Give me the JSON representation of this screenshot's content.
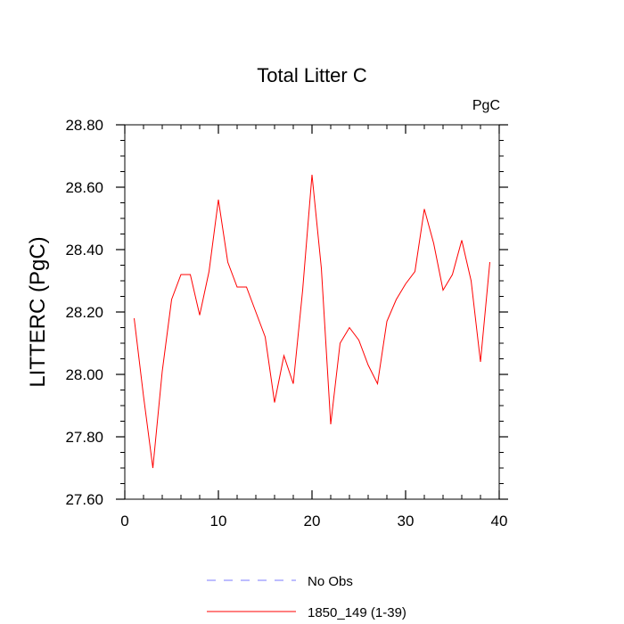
{
  "chart_data": {
    "type": "line",
    "title": "Total Litter C",
    "units_label": "PgC",
    "xlabel": "",
    "ylabel": "LITTERC  (PgC)",
    "xlim": [
      0,
      40
    ],
    "ylim": [
      27.6,
      28.8
    ],
    "x_ticks": [
      0,
      10,
      20,
      30,
      40
    ],
    "x_tick_labels": [
      "0",
      "10",
      "20",
      "30",
      "40"
    ],
    "y_ticks": [
      27.6,
      27.8,
      28.0,
      28.2,
      28.4,
      28.6,
      28.8
    ],
    "y_tick_labels": [
      "27.60",
      "27.80",
      "28.00",
      "28.20",
      "28.40",
      "28.60",
      "28.80"
    ],
    "grid": false,
    "legend_position": "bottom",
    "series": [
      {
        "name": "No Obs",
        "color": "#7b7bff",
        "dashed": true,
        "x": [],
        "y": []
      },
      {
        "name": "1850_149 (1-39)",
        "color": "#ff0000",
        "dashed": false,
        "x": [
          1,
          2,
          3,
          4,
          5,
          6,
          7,
          8,
          9,
          10,
          11,
          12,
          13,
          14,
          15,
          16,
          17,
          18,
          19,
          20,
          21,
          22,
          23,
          24,
          25,
          26,
          27,
          28,
          29,
          30,
          31,
          32,
          33,
          34,
          35,
          36,
          37,
          38,
          39
        ],
        "y": [
          28.18,
          27.93,
          27.7,
          28.01,
          28.24,
          28.32,
          28.32,
          28.19,
          28.33,
          28.56,
          28.36,
          28.28,
          28.28,
          28.2,
          28.12,
          27.91,
          28.06,
          27.97,
          28.27,
          28.64,
          28.34,
          27.84,
          28.1,
          28.15,
          28.11,
          28.03,
          27.97,
          28.17,
          28.24,
          28.29,
          28.33,
          28.53,
          28.42,
          28.27,
          28.32,
          28.43,
          28.3,
          28.04,
          28.36
        ]
      }
    ]
  }
}
